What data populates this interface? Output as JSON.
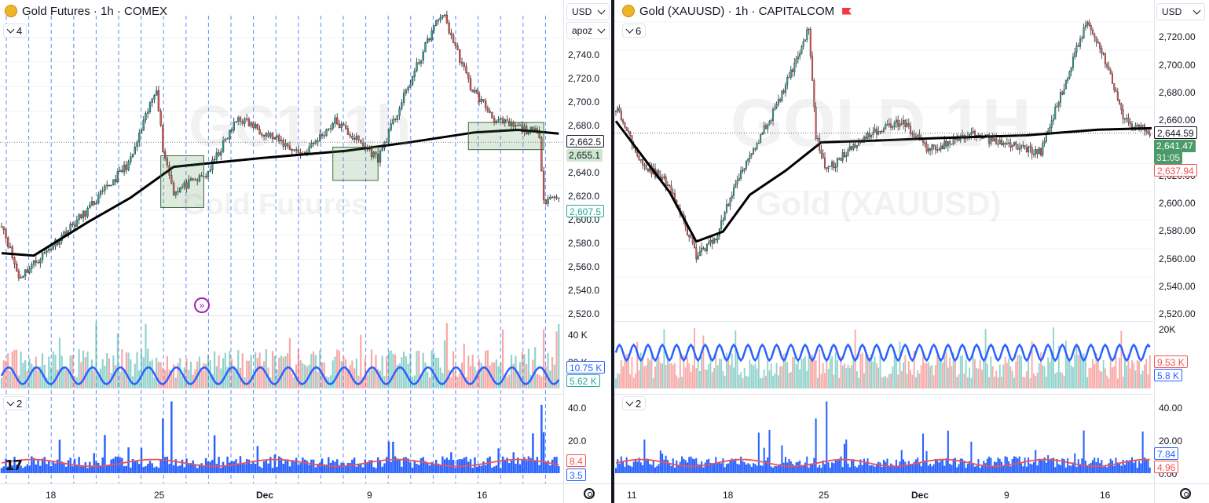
{
  "left": {
    "title": "Gold Futures · 1h · COMEX",
    "watermark_main": "GC1! 1h",
    "watermark_sub": "Gold Futures",
    "currency": "USD",
    "scale_mode": "apoz",
    "main_indicators_count": "4",
    "sub_indicators_count": "2",
    "price_axis": [
      "2,740.0",
      "2,720.0",
      "2,700.0",
      "2,680.0",
      "2,662.5",
      "2,655.1",
      "2,640.0",
      "2,620.0",
      "2,607.5",
      "2,600.0",
      "2,580.0",
      "2,560.0",
      "2,540.0",
      "2,520.0"
    ],
    "price_ticks": [
      2740,
      2720,
      2700,
      2680,
      2640,
      2620,
      2600,
      2580,
      2560,
      2540,
      2520
    ],
    "price_range": [
      2517,
      2764
    ],
    "tag_upper": "2,662.5",
    "tag_mid": "2,655.1",
    "tag_lower": "2,607.5",
    "volume_axis": [
      "40 K",
      "20 K"
    ],
    "volume_tag_blue": "10.75 K",
    "volume_tag_green": "5.62 K",
    "osc_axis": [
      "40.0",
      "20.0"
    ],
    "osc_tag_red": "8.4",
    "osc_tag_blue": "3.5",
    "date_labels": [
      "18",
      "25",
      "Dec",
      "9",
      "16"
    ],
    "logo_text": "17"
  },
  "right": {
    "title": "Gold (XAUUSD) · 1h · CAPITALCOM",
    "watermark_main": "GOLD 1H",
    "watermark_sub": "Gold (XAUUSD)",
    "currency": "USD",
    "main_indicators_count": "6",
    "sub_indicators_count": "2",
    "price_axis": [
      "2,720.00",
      "2,700.00",
      "2,680.00",
      "2,660.00",
      "2,644.59",
      "2,641.47",
      "31:05",
      "2,637.94",
      "2,620.00",
      "2,600.00",
      "2,580.00",
      "2,560.00",
      "2,540.00",
      "2,520.00"
    ],
    "price_ticks": [
      2720,
      2700,
      2680,
      2660,
      2620,
      2600,
      2580,
      2560,
      2540,
      2520
    ],
    "price_range": [
      2515,
      2730
    ],
    "tag_black": "2,644.59",
    "tag_green": "2,641.47",
    "tag_countdown": "31:05",
    "tag_red": "2,637.94",
    "volume_axis": [
      "20K"
    ],
    "volume_tag_red": "9.53 K",
    "volume_tag_blue": "5.8 K",
    "osc_axis": [
      "40.00",
      "20.00",
      "0.00"
    ],
    "osc_tag_blue": "7.84",
    "osc_tag_red": "4.96",
    "date_labels": [
      "11",
      "18",
      "25",
      "Dec",
      "9",
      "16"
    ]
  },
  "colors": {
    "up": "#26a69a",
    "down": "#ef5350",
    "vwap": "#000000",
    "blue": "#2962ff",
    "grid": "#f0f3fa",
    "session": "#2962ff",
    "box_fill": "rgba(76,140,76,0.18)",
    "box_stroke": "#3a6b3a"
  },
  "icons": {
    "settings": "gear-icon",
    "collapse": "chevron-down-icon",
    "goto_realtime": "goto-realtime-icon",
    "logo": "tradingview-logo"
  }
}
